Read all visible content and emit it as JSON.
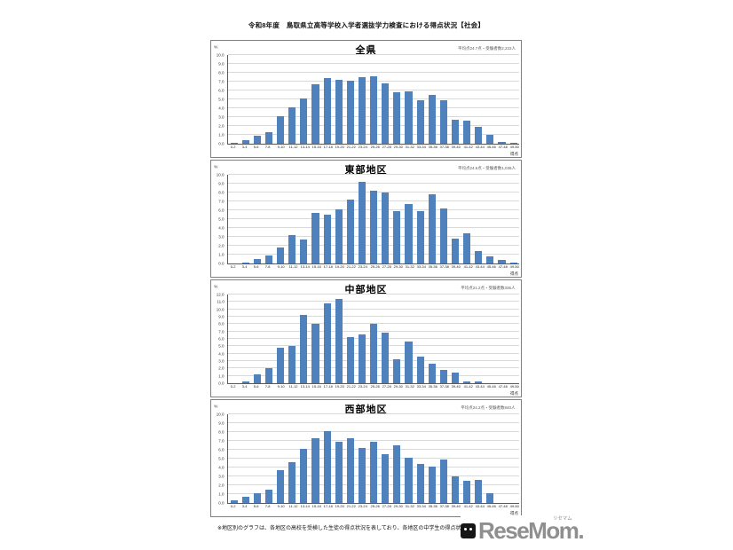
{
  "page": {
    "title": "令和8年度　鳥取県立高等学校入学者選抜学力検査における得点状況【社会】",
    "footer_note": "※地区別のグラフは、各地区の高校を受検した生徒の得点状況を表しており、各地区の中学生の得点状況とは異なります。",
    "logo": {
      "text": "ReseMom.",
      "ruby": "リセマム"
    }
  },
  "chart_data": [
    {
      "type": "bar",
      "title": "全県",
      "annotation": "平均点24.7点・受験者数2,222人",
      "ylabel": "%",
      "xlabel": "得点",
      "ylim": [
        0,
        10
      ],
      "ytick_step": 1,
      "grid": true,
      "legend": false,
      "bar_color": "#4f81bd",
      "categories": [
        "0-2",
        "3-4",
        "5-6",
        "7-8",
        "9-10",
        "11-12",
        "13-14",
        "15-16",
        "17-18",
        "19-20",
        "21-22",
        "23-24",
        "25-26",
        "27-28",
        "29-30",
        "31-32",
        "33-34",
        "35-36",
        "37-38",
        "39-40",
        "41-42",
        "43-44",
        "45-46",
        "47-48",
        "49-50"
      ],
      "values": [
        0.1,
        0.4,
        0.9,
        1.3,
        3.1,
        4.1,
        5.1,
        6.7,
        7.4,
        7.2,
        7.1,
        7.5,
        7.6,
        6.8,
        5.8,
        5.9,
        4.9,
        5.5,
        4.9,
        2.7,
        2.6,
        1.9,
        1.0,
        0.2,
        0.1
      ]
    },
    {
      "type": "bar",
      "title": "東部地区",
      "annotation": "平均点24.6点・受験者数1,036人",
      "ylabel": "%",
      "xlabel": "得点",
      "ylim": [
        0,
        10
      ],
      "ytick_step": 1,
      "grid": true,
      "legend": false,
      "bar_color": "#4f81bd",
      "categories": [
        "0-2",
        "3-4",
        "5-6",
        "7-8",
        "9-10",
        "11-12",
        "13-14",
        "15-16",
        "17-18",
        "19-20",
        "21-22",
        "23-24",
        "25-26",
        "27-28",
        "29-30",
        "31-32",
        "33-34",
        "35-36",
        "37-38",
        "39-40",
        "41-42",
        "43-44",
        "45-46",
        "47-48",
        "49-50"
      ],
      "values": [
        0.0,
        0.1,
        0.5,
        0.9,
        1.8,
        3.2,
        2.7,
        5.7,
        5.5,
        6.1,
        7.2,
        9.2,
        8.2,
        8.0,
        5.9,
        6.7,
        5.9,
        7.8,
        6.2,
        2.8,
        3.4,
        1.4,
        0.8,
        0.4,
        0.1
      ]
    },
    {
      "type": "bar",
      "title": "中部地区",
      "annotation": "平均点21.2点・受験者数336人",
      "ylabel": "%",
      "xlabel": "得点",
      "ylim": [
        0,
        12
      ],
      "ytick_step": 1,
      "grid": true,
      "legend": false,
      "bar_color": "#4f81bd",
      "categories": [
        "0-2",
        "3-4",
        "5-6",
        "7-8",
        "9-10",
        "11-12",
        "13-14",
        "15-16",
        "17-18",
        "19-20",
        "21-22",
        "23-24",
        "25-26",
        "27-28",
        "29-30",
        "31-32",
        "33-34",
        "35-36",
        "37-38",
        "39-40",
        "41-42",
        "43-44",
        "45-46",
        "47-48",
        "49-50"
      ],
      "values": [
        0.0,
        0.3,
        1.2,
        2.1,
        4.8,
        5.1,
        9.3,
        8.1,
        10.8,
        11.4,
        6.3,
        6.6,
        8.1,
        6.9,
        3.3,
        5.7,
        3.6,
        2.7,
        1.8,
        1.5,
        0.3,
        0.3,
        0.0,
        0.0,
        0.0
      ]
    },
    {
      "type": "bar",
      "title": "西部地区",
      "annotation": "平均点24.2点・受験者数840人",
      "ylabel": "%",
      "xlabel": "得点",
      "ylim": [
        0,
        10
      ],
      "ytick_step": 1,
      "grid": true,
      "legend": false,
      "bar_color": "#4f81bd",
      "categories": [
        "0-2",
        "3-4",
        "5-6",
        "7-8",
        "9-10",
        "11-12",
        "13-14",
        "15-16",
        "17-18",
        "19-20",
        "21-22",
        "23-24",
        "25-26",
        "27-28",
        "29-30",
        "31-32",
        "33-34",
        "35-36",
        "37-38",
        "39-40",
        "41-42",
        "43-44",
        "45-46",
        "47-48",
        "49-50"
      ],
      "values": [
        0.3,
        0.7,
        1.1,
        1.5,
        3.7,
        4.6,
        6.1,
        7.3,
        8.1,
        6.9,
        7.3,
        6.2,
        6.9,
        5.5,
        6.5,
        5.1,
        4.4,
        4.1,
        4.9,
        3.0,
        2.5,
        2.6,
        1.1,
        0.0,
        0.0
      ]
    }
  ]
}
